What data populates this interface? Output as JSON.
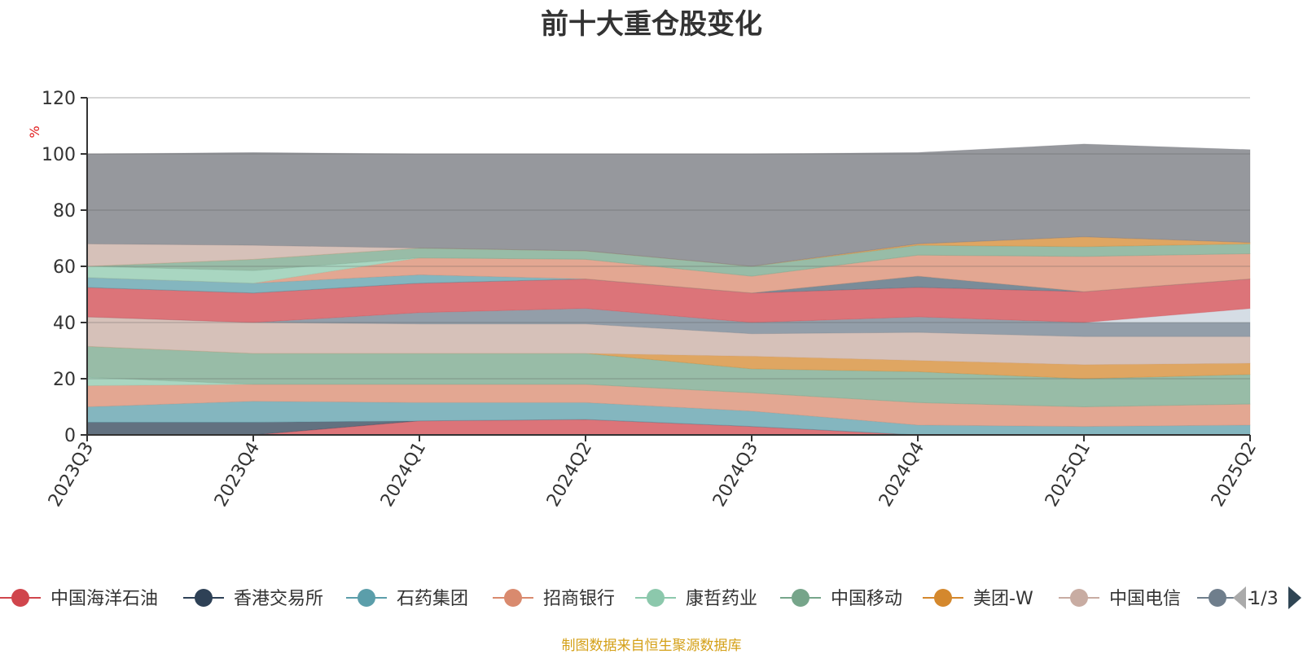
{
  "chart_data": {
    "type": "area",
    "stacked": true,
    "title": "前十大重仓股变化",
    "ylabel": "%",
    "ylim": [
      0,
      120
    ],
    "yticks": [
      0,
      20,
      40,
      60,
      80,
      100,
      120
    ],
    "grid": true,
    "categories": [
      "2023Q3",
      "2023Q4",
      "2024Q1",
      "2024Q2",
      "2024Q3",
      "2024Q4",
      "2025Q1",
      "2025Q2"
    ],
    "series": [
      {
        "name": "中国海洋石油",
        "color": "#d0454c",
        "values": [
          0,
          0,
          5,
          5.5,
          3,
          0,
          0,
          0
        ]
      },
      {
        "name": "香港交易所",
        "color": "#2e4156",
        "values": [
          4.5,
          4.5,
          0,
          0,
          0,
          0,
          0,
          0
        ]
      },
      {
        "name": "石药集团",
        "color": "#5b9eaa",
        "values": [
          5.5,
          7.5,
          6.5,
          6,
          5.5,
          3.5,
          3,
          3.5
        ]
      },
      {
        "name": "招商银行",
        "color": "#d98a6e",
        "values": [
          7.5,
          6,
          6.5,
          6.5,
          6.5,
          8,
          7,
          7.5
        ]
      },
      {
        "name": "康哲药业",
        "color": "#8cc8ac",
        "values": [
          3,
          0,
          0,
          0,
          0,
          0,
          0,
          0
        ]
      },
      {
        "name": "中国移动",
        "color": "#76a58a",
        "values": [
          11,
          11,
          11,
          11,
          8.5,
          11,
          10,
          10.5
        ]
      },
      {
        "name": "美团-W",
        "color": "#d4882d",
        "values": [
          0,
          0,
          0,
          0,
          4.5,
          4,
          5,
          4
        ]
      },
      {
        "name": "中国电信",
        "color": "#c8aca2",
        "values": [
          10.5,
          11,
          10.5,
          10.5,
          8,
          10,
          10,
          9.5
        ]
      },
      {
        "name": "",
        "color": "#6f7e8c",
        "values": [
          0,
          0,
          4,
          5.5,
          4,
          5.5,
          5,
          5
        ]
      },
      {
        "name": "",
        "color": "#c7d2dc",
        "values": [
          0,
          0,
          0,
          0,
          0,
          0,
          0,
          5
        ]
      },
      {
        "name": "",
        "color": "#d0454c",
        "values": [
          10.5,
          10.5,
          10.5,
          10.5,
          10.5,
          10.5,
          11,
          10.5
        ]
      },
      {
        "name": "",
        "color": "#4d6577",
        "values": [
          0,
          0,
          0,
          0,
          0,
          4,
          0,
          0
        ]
      },
      {
        "name": "",
        "color": "#5b9eaa",
        "values": [
          3.5,
          3.5,
          3,
          0,
          0,
          0,
          0,
          0
        ]
      },
      {
        "name": "",
        "color": "#d98a6e",
        "values": [
          0,
          0,
          6,
          7,
          6,
          7.5,
          12.5,
          9
        ]
      },
      {
        "name": "",
        "color": "#8cc8ac",
        "values": [
          4,
          4.5,
          0,
          0,
          0,
          0,
          0,
          0
        ]
      },
      {
        "name": "",
        "color": "#76a58a",
        "values": [
          0,
          4,
          3.5,
          3,
          3.5,
          3.5,
          3.5,
          3.5
        ]
      },
      {
        "name": "",
        "color": "#d4882d",
        "values": [
          0,
          0,
          0,
          0,
          0,
          0.5,
          3.5,
          0.5
        ]
      },
      {
        "name": "",
        "color": "#c8aca2",
        "values": [
          8,
          5,
          0,
          0,
          0,
          0,
          0,
          0
        ]
      },
      {
        "name": "",
        "color": "#73757c",
        "values": [
          32,
          33,
          33.5,
          34.5,
          40,
          32.5,
          33,
          33
        ]
      }
    ],
    "legend": {
      "placement": "bottom",
      "items": [
        "中国海洋石油",
        "香港交易所",
        "石药集团",
        "招商银行",
        "康哲药业",
        "中国移动",
        "美团-W",
        "中国电信",
        "-"
      ],
      "page": "1/3"
    }
  },
  "footer": {
    "source": "制图数据来自恒生聚源数据库"
  },
  "colors": {
    "grid": "#c8c8c8",
    "axis": "#333333",
    "unit": "#e0191a",
    "footer": "#d4a017",
    "pager_prev": "#aaaaaa",
    "pager_next": "#2f4554"
  }
}
